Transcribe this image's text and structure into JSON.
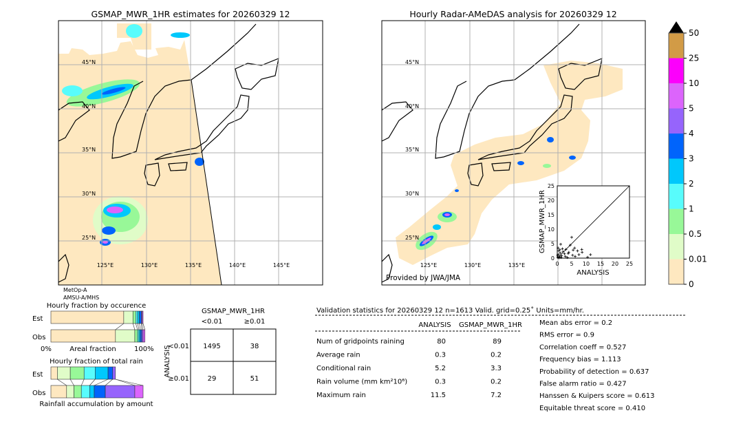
{
  "left_map": {
    "title": "GSMAP_MWR_1HR estimates for 20260329 12",
    "lat_labels": [
      "45°N",
      "40°N",
      "35°N",
      "30°N",
      "25°N"
    ],
    "lon_labels": [
      "125°E",
      "130°E",
      "135°E",
      "140°E",
      "145°E"
    ],
    "satellite": "MetOp-A",
    "sensor": "AMSU-A/MHS"
  },
  "right_map": {
    "title": "Hourly Radar-AMeDAS analysis for 20260329 12",
    "lat_labels": [
      "45°N",
      "40°N",
      "35°N",
      "30°N",
      "25°N"
    ],
    "lon_labels": [
      "125°E",
      "130°E",
      "135°E"
    ],
    "credit": "Provided by JWA/JMA"
  },
  "colorbar": {
    "ticks": [
      "0",
      "0.01",
      "0.5",
      "1",
      "2",
      "3",
      "4",
      "5",
      "10",
      "25",
      "50"
    ],
    "colors": [
      "#fee8c0",
      "#e0fcc8",
      "#98f898",
      "#58fcfc",
      "#00c8fc",
      "#0064fc",
      "#9664fc",
      "#dc64fc",
      "#fc00fc",
      "#d29b46"
    ],
    "extend_color": "#000000"
  },
  "scatter": {
    "xlabel": "ANALYSIS",
    "ylabel": "GSMAP_MWR_1HR",
    "ticks": [
      "0",
      "5",
      "10",
      "15",
      "20",
      "25"
    ],
    "xlim": [
      0,
      25
    ],
    "ylim": [
      0,
      25
    ],
    "points": [
      [
        0.2,
        0.3
      ],
      [
        0.4,
        1.2
      ],
      [
        0.5,
        2.5
      ],
      [
        0.3,
        3.5
      ],
      [
        0.8,
        0.5
      ],
      [
        1.0,
        1.8
      ],
      [
        1.2,
        4.8
      ],
      [
        0.6,
        0.1
      ],
      [
        1.5,
        0.8
      ],
      [
        2.0,
        2.2
      ],
      [
        2.5,
        1.5
      ],
      [
        3.0,
        3.0
      ],
      [
        3.5,
        0.2
      ],
      [
        4.0,
        2.0
      ],
      [
        4.5,
        4.5
      ],
      [
        5.0,
        7.2
      ],
      [
        5.3,
        1.0
      ],
      [
        6.0,
        3.5
      ],
      [
        6.2,
        0.6
      ],
      [
        7.0,
        2.5
      ],
      [
        7.5,
        1.2
      ],
      [
        8.5,
        3.0
      ],
      [
        8.6,
        2.0
      ],
      [
        10.5,
        0.3
      ],
      [
        11.5,
        1.2
      ],
      [
        1.8,
        3.2
      ],
      [
        2.8,
        0.6
      ],
      [
        0.9,
        2.9
      ],
      [
        1.3,
        0.2
      ],
      [
        3.8,
        1.6
      ],
      [
        5.5,
        2.8
      ],
      [
        0.1,
        1.0
      ]
    ]
  },
  "occurrence": {
    "title": "Hourly fraction by occurence",
    "rows": [
      "Est",
      "Obs"
    ],
    "xlabel": "Areal fraction",
    "xmin_label": "0%",
    "xmax_label": "100%",
    "est_fractions": [
      0.79,
      0.1,
      0.03,
      0.02,
      0.02,
      0.02,
      0.01,
      0.01
    ],
    "obs_fractions": [
      0.7,
      0.21,
      0.03,
      0.015,
      0.015,
      0.015,
      0.015,
      0.02
    ]
  },
  "total_rain": {
    "title": "Hourly fraction of total rain",
    "rows": [
      "Est",
      "Obs"
    ],
    "xlabel": "Rainfall accumulation by amount",
    "est_fractions": [
      0.07,
      0.14,
      0.15,
      0.12,
      0.14,
      0.05,
      0.03,
      0.0
    ],
    "obs_fractions": [
      0.17,
      0.08,
      0.08,
      0.09,
      0.05,
      0.12,
      0.32,
      0.09
    ]
  },
  "contingency": {
    "title": "GSMAP_MWR_1HR",
    "col_labels": [
      "<0.01",
      "≥0.01"
    ],
    "row_axis": "ANALYSIS",
    "row_labels": [
      "<0.01",
      "≥0.01"
    ],
    "cells": [
      [
        "1495",
        "38"
      ],
      [
        "29",
        "51"
      ]
    ]
  },
  "stats": {
    "header": "Validation statistics for 20260329 12  n=1613 Valid. grid=0.25˚ Units=mm/hr.",
    "col_analysis": "ANALYSIS",
    "col_gsmap": "GSMAP_MWR_1HR",
    "rows": [
      {
        "label": "Num of gridpoints raining",
        "analysis": "80",
        "gsmap": "89"
      },
      {
        "label": "Average rain",
        "analysis": "0.3",
        "gsmap": "0.2"
      },
      {
        "label": "Conditional rain",
        "analysis": "5.2",
        "gsmap": "3.3"
      },
      {
        "label": "Rain volume (mm km²10⁶)",
        "analysis": "0.3",
        "gsmap": "0.2"
      },
      {
        "label": "Maximum rain",
        "analysis": "11.5",
        "gsmap": "7.2"
      }
    ],
    "scores": [
      "Mean abs error =    0.2",
      "RMS error =    0.9",
      "Correlation coeff =  0.527",
      "Frequency bias =  1.113",
      "Probability of detection =  0.637",
      "False alarm ratio =  0.427",
      "Hanssen & Kuipers score =  0.613",
      "Equitable threat score =  0.410"
    ]
  },
  "chart_data": [
    {
      "type": "heatmap",
      "title": "GSMAP_MWR_1HR estimates for 20260329 12",
      "note": "map"
    },
    {
      "type": "heatmap",
      "title": "Hourly Radar-AMeDAS analysis for 20260329 12",
      "note": "map"
    },
    {
      "type": "scatter",
      "xlabel": "ANALYSIS",
      "ylabel": "GSMAP_MWR_1HR",
      "xlim": [
        0,
        25
      ],
      "ylim": [
        0,
        25
      ]
    },
    {
      "type": "bar",
      "title": "Hourly fraction by occurence",
      "categories": [
        "Est",
        "Obs"
      ]
    },
    {
      "type": "bar",
      "title": "Hourly fraction of total rain",
      "categories": [
        "Est",
        "Obs"
      ]
    },
    {
      "type": "table",
      "title": "GSMAP_MWR_1HR"
    }
  ]
}
